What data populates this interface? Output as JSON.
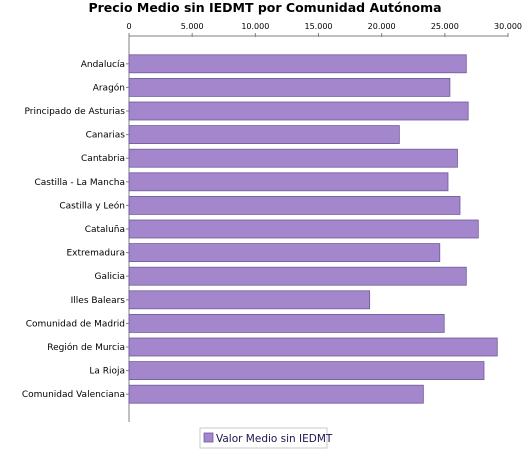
{
  "chart_data": {
    "type": "bar",
    "orientation": "horizontal",
    "title": "Precio Medio sin IEDMT por Comunidad Autónoma",
    "xlabel": "",
    "ylabel": "",
    "xlim": [
      0,
      30000
    ],
    "ticks": [
      0,
      5000,
      10000,
      15000,
      20000,
      25000,
      30000
    ],
    "tick_labels": [
      "0",
      "5.000",
      "10.000",
      "15.000",
      "20.000",
      "25.000",
      "30.000"
    ],
    "grid": false,
    "legend_position": "bottom",
    "categories": [
      "Andalucía",
      "Aragón",
      "Principado de Asturias",
      "Canarias",
      "Cantabria",
      "Castilla - La Mancha",
      "Castilla y León",
      "Cataluña",
      "Extremadura",
      "Galicia",
      "Illes Balears",
      "Comunidad de Madrid",
      "Región de Murcia",
      "La Rioja",
      "Comunidad Valenciana"
    ],
    "series": [
      {
        "name": "Valor Medio sin IEDMT",
        "color": "#a486cc",
        "values": [
          26700,
          25400,
          26850,
          21400,
          26000,
          25250,
          26200,
          27650,
          24600,
          26700,
          19050,
          24950,
          29150,
          28100,
          23300
        ]
      }
    ]
  }
}
